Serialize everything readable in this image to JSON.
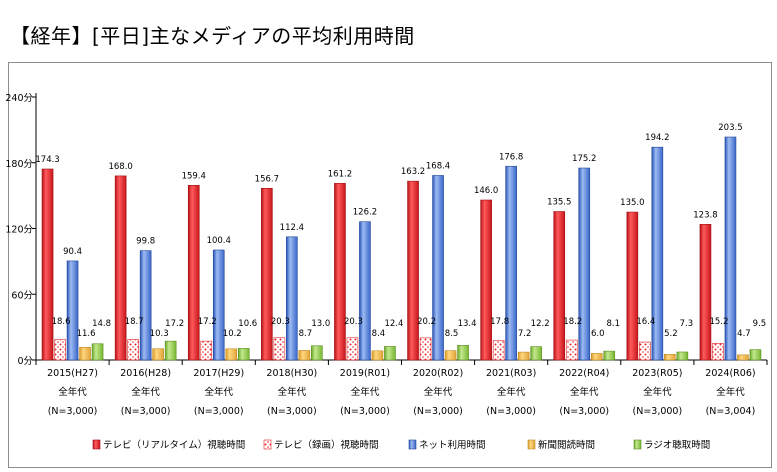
{
  "title": "【経年】[平日]主なメディアの平均利用時間",
  "chart_data": {
    "type": "bar",
    "categories": [
      {
        "year": "2015(H27)",
        "age": "全年代",
        "n": "(N=3,000)"
      },
      {
        "year": "2016(H28)",
        "age": "全年代",
        "n": "(N=3,000)"
      },
      {
        "year": "2017(H29)",
        "age": "全年代",
        "n": "(N=3,000)"
      },
      {
        "year": "2018(H30)",
        "age": "全年代",
        "n": "(N=3,000)"
      },
      {
        "year": "2019(R01)",
        "age": "全年代",
        "n": "(N=3,000)"
      },
      {
        "year": "2020(R02)",
        "age": "全年代",
        "n": "(N=3,000)"
      },
      {
        "year": "2021(R03)",
        "age": "全年代",
        "n": "(N=3,000)"
      },
      {
        "year": "2022(R04)",
        "age": "全年代",
        "n": "(N=3,000)"
      },
      {
        "year": "2023(R05)",
        "age": "全年代",
        "n": "(N=3,000)"
      },
      {
        "year": "2024(R06)",
        "age": "全年代",
        "n": "(N=3,004)"
      }
    ],
    "series": [
      {
        "name": "テレビ（リアルタイム）視聴時間",
        "color": "#e8262a",
        "pattern": "solid",
        "values": [
          174.3,
          168.0,
          159.4,
          156.7,
          161.2,
          163.2,
          146.0,
          135.5,
          135.0,
          123.8
        ]
      },
      {
        "name": "テレビ（録画）視聴時間",
        "color": "#e8262a",
        "pattern": "dots",
        "values": [
          18.6,
          18.7,
          17.2,
          20.3,
          20.3,
          20.2,
          17.8,
          18.2,
          16.4,
          15.2
        ]
      },
      {
        "name": "ネット利用時間",
        "color": "#4472d9",
        "pattern": "solid",
        "values": [
          90.4,
          99.8,
          100.4,
          112.4,
          126.2,
          168.4,
          176.8,
          175.2,
          194.2,
          203.5
        ]
      },
      {
        "name": "新聞閲読時間",
        "color": "#f2b84a",
        "pattern": "solid",
        "values": [
          11.6,
          10.3,
          10.2,
          8.7,
          8.4,
          8.5,
          7.2,
          6.0,
          5.2,
          4.7
        ]
      },
      {
        "name": "ラジオ聴取時間",
        "color": "#8cc63f",
        "pattern": "solid",
        "values": [
          14.8,
          17.2,
          10.6,
          13.0,
          12.4,
          13.4,
          12.2,
          8.1,
          7.3,
          9.5
        ]
      }
    ],
    "value_labels": [
      [
        "174.3",
        "168.0",
        "159.4",
        "156.7",
        "161.2",
        "163.2",
        "146.0",
        "135.5",
        "135.0",
        "123.8"
      ],
      [
        "18.6",
        "18.7",
        "17.2",
        "20.3",
        "20.3",
        "20.2",
        "17.8",
        "18.2",
        "16.4",
        "15.2"
      ],
      [
        "90.4",
        "99.8",
        "100.4",
        "112.4",
        "126.2",
        "168.4",
        "176.8",
        "175.2",
        "194.2",
        "203.5"
      ],
      [
        "11.6",
        "10.3",
        "10.2",
        "8.7",
        "8.4",
        "8.5",
        "7.2",
        "6.0",
        "5.2",
        "4.7"
      ],
      [
        "14.8",
        "17.2",
        "10.6",
        "13.0",
        "12.4",
        "13.4",
        "12.2",
        "8.1",
        "7.3",
        "9.5"
      ]
    ],
    "yaxis": {
      "ticks": [
        0,
        60,
        120,
        180,
        240
      ],
      "tick_labels": [
        "0分",
        "60分",
        "120分",
        "180分",
        "240分"
      ],
      "ylim": [
        0,
        240
      ]
    },
    "grid": false,
    "legend": {
      "position": "bottom"
    }
  }
}
